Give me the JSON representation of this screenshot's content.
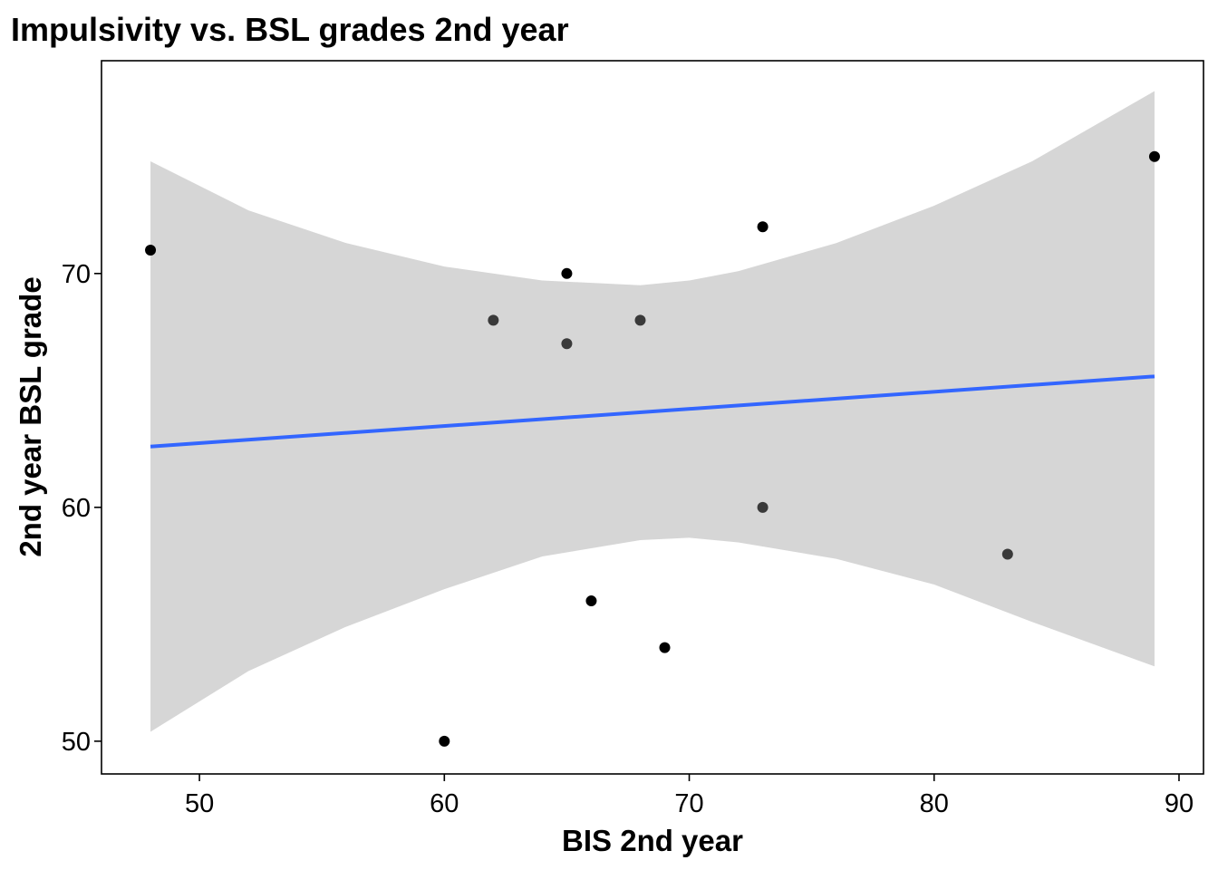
{
  "chart_data": {
    "type": "scatter",
    "title": "Impulsivity vs. BSL grades 2nd year",
    "xlabel": "BIS 2nd year",
    "ylabel": "2nd year BSL grade",
    "xlim": [
      46,
      91
    ],
    "ylim": [
      48.6,
      79.1
    ],
    "x_ticks": [
      50,
      60,
      70,
      80,
      90
    ],
    "y_ticks": [
      50,
      60,
      70
    ],
    "x_tick_labels": [
      "50",
      "60",
      "70",
      "80",
      "90"
    ],
    "y_tick_labels": [
      "50",
      "60",
      "70"
    ],
    "grid": false,
    "points": [
      {
        "x": 48,
        "y": 71,
        "overlap": true
      },
      {
        "x": 60,
        "y": 50,
        "overlap": true
      },
      {
        "x": 62,
        "y": 68,
        "overlap": false
      },
      {
        "x": 65,
        "y": 70,
        "overlap": true
      },
      {
        "x": 65,
        "y": 67,
        "overlap": false
      },
      {
        "x": 66,
        "y": 56,
        "overlap": true
      },
      {
        "x": 68,
        "y": 68,
        "overlap": false
      },
      {
        "x": 69,
        "y": 54,
        "overlap": true
      },
      {
        "x": 73,
        "y": 72,
        "overlap": true
      },
      {
        "x": 73,
        "y": 60,
        "overlap": false
      },
      {
        "x": 83,
        "y": 58,
        "overlap": false
      },
      {
        "x": 89,
        "y": 75,
        "overlap": true
      }
    ],
    "fit_line": {
      "x": [
        48,
        89
      ],
      "y": [
        62.6,
        65.6
      ]
    },
    "confidence_band": {
      "x": [
        48,
        52,
        56,
        60,
        64,
        68,
        70,
        72,
        76,
        80,
        84,
        89
      ],
      "upper": [
        74.8,
        72.7,
        71.3,
        70.3,
        69.7,
        69.5,
        69.7,
        70.1,
        71.3,
        72.9,
        74.8,
        77.8
      ],
      "lower": [
        50.4,
        53.0,
        54.9,
        56.5,
        57.9,
        58.6,
        58.7,
        58.5,
        57.8,
        56.7,
        55.1,
        53.2
      ]
    },
    "colors": {
      "point": "#000000",
      "point_light": "#3a3a3a",
      "fit_line": "#3366ff",
      "band": "#d6d6d6",
      "panel_border": "#000000"
    }
  }
}
